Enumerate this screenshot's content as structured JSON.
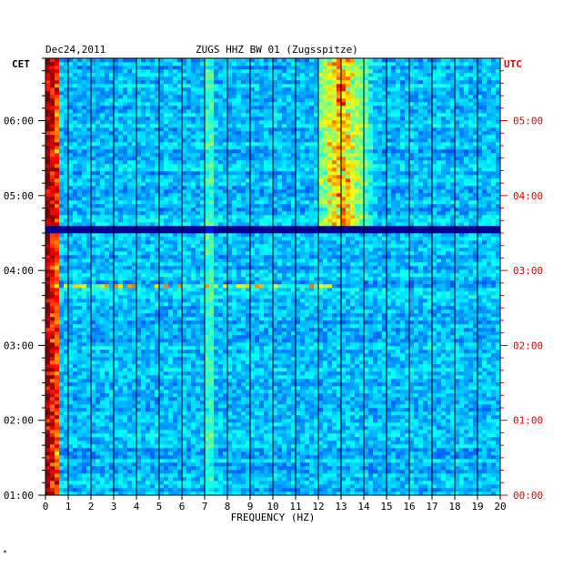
{
  "header": {
    "date": "Dec24,2011",
    "station": "ZUGS HHZ BW 01 (Zugsspitze)"
  },
  "left_zone": "CET",
  "right_zone": "UTC",
  "colors": {
    "background": "#0000a8",
    "left_label": "#000000",
    "right_label": "#e00000",
    "grid": "#000000"
  },
  "chart_data": {
    "type": "heatmap",
    "title": "ZUGS HHZ BW 01 (Zugsspitze)",
    "date": "Dec24,2011",
    "xlabel": "FREQUENCY (HZ)",
    "xlim": [
      0,
      20
    ],
    "x_ticks": [
      "0",
      "1",
      "2",
      "3",
      "4",
      "5",
      "6",
      "7",
      "8",
      "9",
      "10",
      "11",
      "12",
      "13",
      "14",
      "15",
      "16",
      "17",
      "18",
      "19",
      "20"
    ],
    "y_left_label": "CET",
    "y_left_ticks": [
      "01:00",
      "02:00",
      "03:00",
      "04:00",
      "05:00",
      "06:00"
    ],
    "y_right_label": "UTC",
    "y_right_ticks": [
      "00:00",
      "01:00",
      "02:00",
      "03:00",
      "04:00",
      "05:00"
    ],
    "time_range_cet": [
      "01:00",
      "06:50"
    ],
    "colormap": "jet",
    "features": [
      {
        "kind": "low-frequency band",
        "freq_hz": [
          0,
          0.6
        ],
        "time_cet": [
          "01:00",
          "06:50"
        ]
      },
      {
        "kind": "energy patch",
        "freq_hz": [
          12,
          14.5
        ],
        "time_cet": [
          "04:35",
          "06:50"
        ]
      },
      {
        "kind": "horizontal line",
        "freq_hz": [
          0,
          20
        ],
        "time_cet": "04:32"
      },
      {
        "kind": "tone line",
        "freq_hz": [
          0.8,
          12.5
        ],
        "time_cet": "03:48"
      },
      {
        "kind": "vertical line",
        "freq_hz": 7.2,
        "time_cet": [
          "01:00",
          "06:50"
        ]
      }
    ]
  },
  "footer_mark": "*"
}
